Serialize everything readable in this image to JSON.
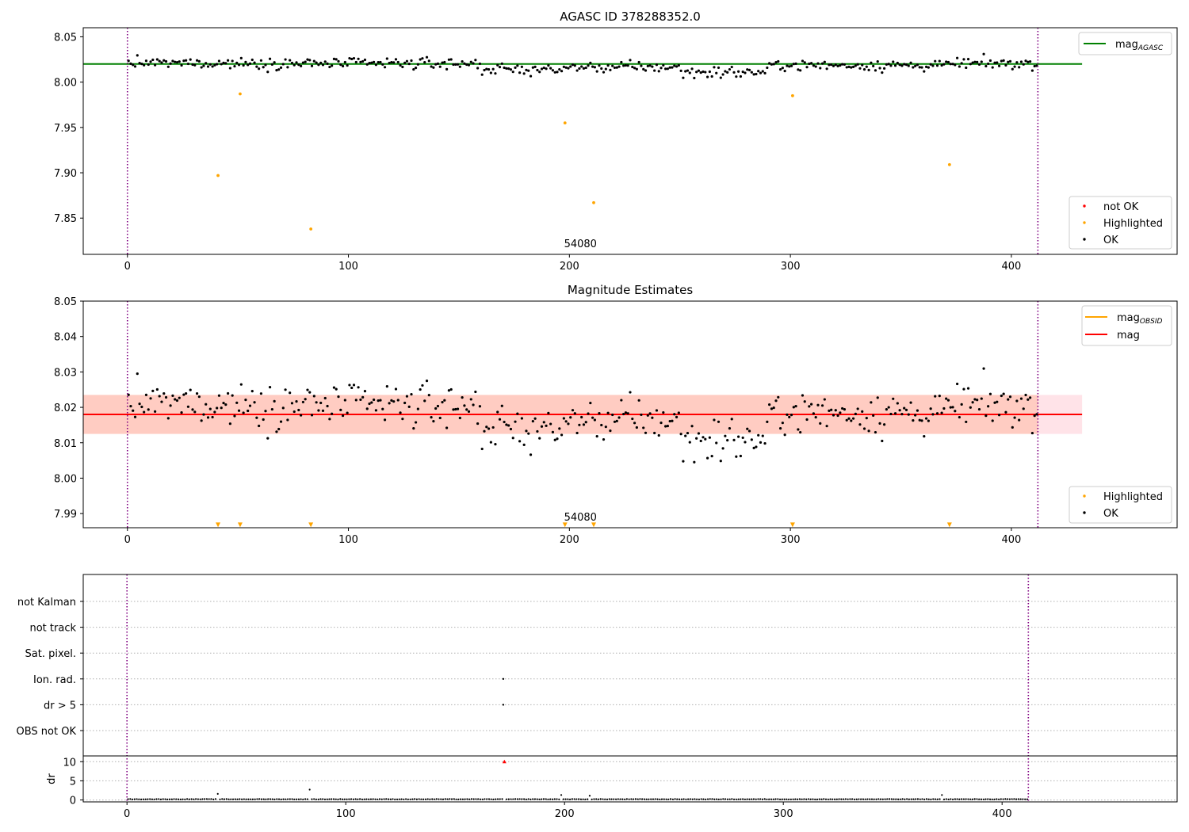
{
  "figure": {
    "colors": {
      "ok": "#000000",
      "highlighted": "#ffa500",
      "not_ok": "#ff0000",
      "mag_agasc": "#008000",
      "mag": "#ff0000",
      "mag_obsid": "#ffa500",
      "band_outer": "#ffc0cb",
      "band_inner": "#ffa07a",
      "obs_marker": "#800080"
    }
  },
  "chart_data": [
    {
      "type": "scatter",
      "title": "AGASC ID 378288352.0",
      "xlim": [
        -20,
        475
      ],
      "ylim": [
        7.81,
        8.06
      ],
      "xticks": [
        "0",
        "100",
        "200",
        "300",
        "400"
      ],
      "yticks": [
        "7.85",
        "7.90",
        "7.95",
        "8.00",
        "8.05"
      ],
      "obs_markers": [
        0,
        412
      ],
      "obs_label": "54080",
      "obs_label_x": 205,
      "lines": [
        {
          "name": "mag_AGASC",
          "label_main": "mag",
          "label_sub": "AGASC",
          "y": 8.02,
          "x": [
            -20,
            432
          ],
          "color": "#008000"
        }
      ],
      "series": [
        {
          "name": "not OK",
          "color": "#ff0000",
          "points": []
        },
        {
          "name": "Highlighted",
          "color": "#ffa500",
          "points": [
            [
              41,
              7.897
            ],
            [
              51,
              7.987
            ],
            [
              83,
              7.838
            ],
            [
              198,
              7.955
            ],
            [
              211,
              7.867
            ],
            [
              301,
              7.985
            ],
            [
              372,
              7.909
            ]
          ]
        },
        {
          "name": "OK",
          "color": "#000000",
          "generated": true,
          "count": 412
        }
      ],
      "legends": [
        {
          "position": "top-right",
          "entries": [
            "mag_AGASC"
          ]
        },
        {
          "position": "bottom-right",
          "entries": [
            "not OK",
            "Highlighted",
            "OK"
          ]
        }
      ]
    },
    {
      "type": "scatter",
      "title": "Magnitude Estimates",
      "xlim": [
        -20,
        475
      ],
      "ylim": [
        7.986,
        8.05
      ],
      "xticks": [
        "0",
        "100",
        "200",
        "300",
        "400"
      ],
      "yticks": [
        "7.99",
        "8.00",
        "8.01",
        "8.02",
        "8.03",
        "8.04",
        "8.05"
      ],
      "obs_markers": [
        0,
        412
      ],
      "obs_label": "54080",
      "obs_label_x": 205,
      "bands": [
        {
          "y0": 8.0125,
          "y1": 8.0235,
          "x": [
            -20,
            432
          ],
          "color": "#ffc0cb",
          "opacity": 0.45
        },
        {
          "y0": 8.0125,
          "y1": 8.0235,
          "x": [
            -20,
            412
          ],
          "color": "#ffa07a",
          "opacity": 0.35
        }
      ],
      "lines": [
        {
          "name": "mag_OBSID",
          "label_main": "mag",
          "label_sub": "OBSID",
          "y": 8.018,
          "x": [
            -20,
            412
          ],
          "color": "#ffa500"
        },
        {
          "name": "mag",
          "label_main": "mag",
          "label_sub": "",
          "y": 8.018,
          "x": [
            -20,
            432
          ],
          "color": "#ff0000"
        }
      ],
      "series": [
        {
          "name": "Highlighted",
          "color": "#ffa500",
          "marker": "triangle-down",
          "points": [
            [
              41,
              7.9868
            ],
            [
              51,
              7.9868
            ],
            [
              83,
              7.9868
            ],
            [
              198,
              7.9868
            ],
            [
              211,
              7.9868
            ],
            [
              301,
              7.9868
            ],
            [
              372,
              7.9868
            ]
          ]
        },
        {
          "name": "OK",
          "color": "#000000",
          "generated": true,
          "count": 412
        }
      ],
      "legends": [
        {
          "position": "top-right",
          "entries": [
            "mag_OBSID",
            "mag"
          ]
        },
        {
          "position": "bottom-right",
          "entries": [
            "Highlighted",
            "OK"
          ]
        }
      ]
    },
    {
      "type": "scatter",
      "title": "",
      "xlim": [
        -20,
        480
      ],
      "xticks": [
        "0",
        "100",
        "200",
        "300",
        "400"
      ],
      "obs_markers": [
        0,
        412
      ],
      "flag_rows": [
        "not Kalman",
        "not track",
        "Sat. pixel.",
        "Ion. rad.",
        "dr > 5",
        "OBS not OK"
      ],
      "flag_points": [
        {
          "row": "Ion. rad.",
          "x": 172
        },
        {
          "row": "dr > 5",
          "x": 172
        }
      ],
      "dr": {
        "ylabel": "dr",
        "ylim": [
          -0.5,
          11.5
        ],
        "yticks": [
          "0",
          "5",
          "10"
        ],
        "baseline": 0.2,
        "spikes": [
          [
            41,
            1.6
          ],
          [
            83,
            2.7
          ],
          [
            198,
            1.3
          ],
          [
            211,
            1.1
          ],
          [
            372,
            1.3
          ]
        ],
        "clipped": [
          [
            172,
            10
          ]
        ]
      }
    }
  ]
}
